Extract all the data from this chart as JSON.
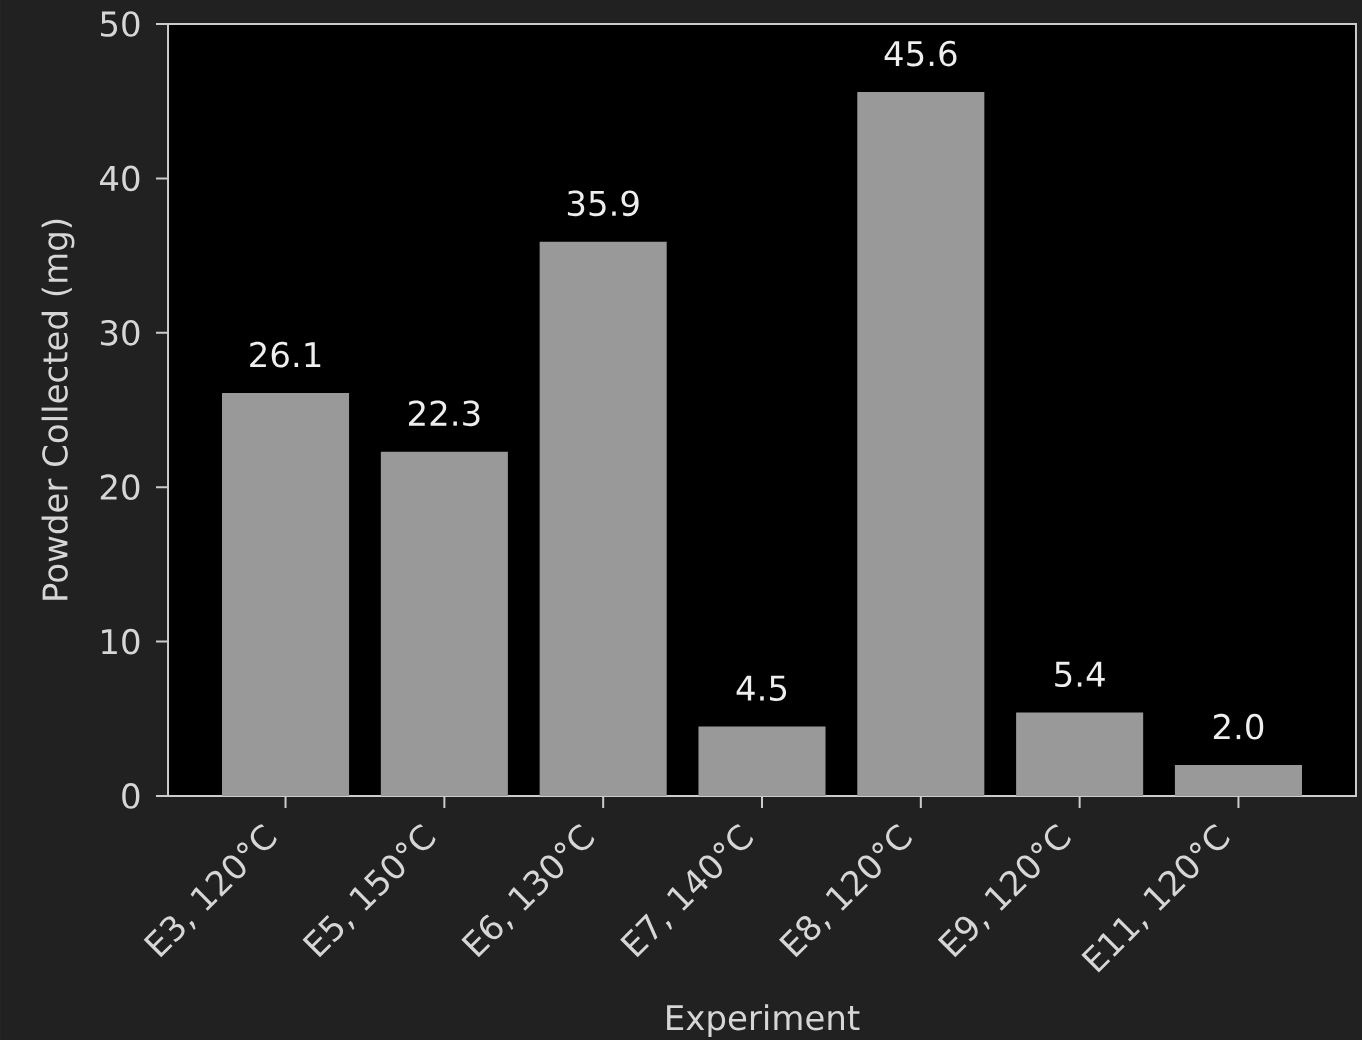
{
  "chart_data": {
    "type": "bar",
    "xlabel": "Experiment",
    "ylabel": "Powder Collected (mg)",
    "categories": [
      "E3, 120°C",
      "E5, 150°C",
      "E6, 130°C",
      "E7, 140°C",
      "E8, 120°C",
      "E9, 120°C",
      "E11, 120°C"
    ],
    "values": [
      26.1,
      22.3,
      35.9,
      4.5,
      45.6,
      5.4,
      2.0
    ],
    "value_labels": [
      "26.1",
      "22.3",
      "35.9",
      "4.5",
      "45.6",
      "5.4",
      "2.0"
    ],
    "color": "#999999",
    "ylim": [
      0,
      50
    ],
    "yticks": [
      0,
      10,
      20,
      30,
      40,
      50
    ]
  }
}
